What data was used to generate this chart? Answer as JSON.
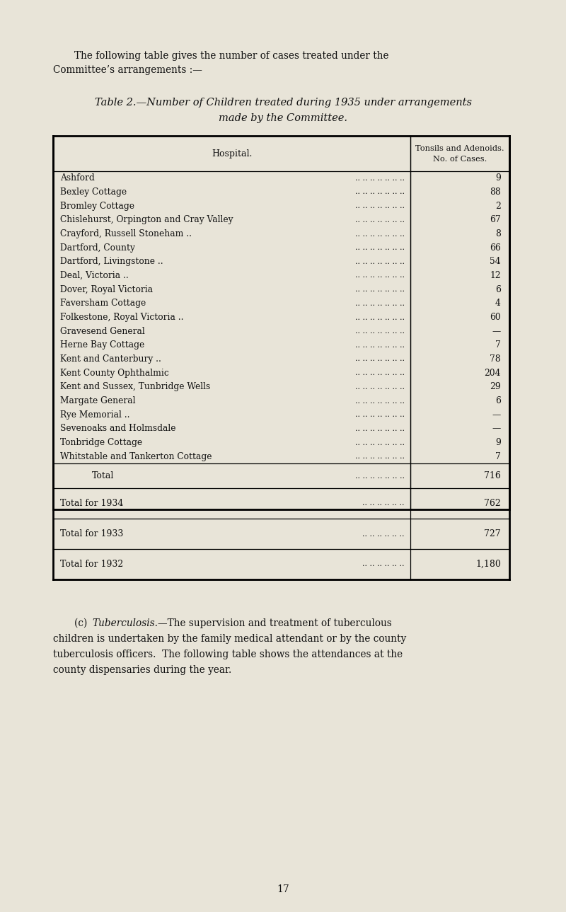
{
  "bg_color": "#e8e4d8",
  "page_width": 8.0,
  "page_height": 12.89,
  "hospitals": [
    "Ashford",
    "Bexley Cottage",
    "Bromley Cottage",
    "Chislehurst, Orpington and Cray Valley",
    "Crayford, Russell Stoneham ..",
    "Dartford, County",
    "Dartford, Livingstone ..",
    "Deal, Victoria ..",
    "Dover, Royal Victoria",
    "Faversham Cottage",
    "Folkestone, Royal Victoria ..",
    "Gravesend General",
    "Herne Bay Cottage",
    "Kent and Canterbury ..",
    "Kent County Ophthalmic",
    "Kent and Sussex, Tunbridge Wells",
    "Margate General",
    "Rye Memorial ..",
    "Sevenoaks and Holmsdale",
    "Tonbridge Cottage",
    "Whitstable and Tankerton Cottage"
  ],
  "cases": [
    "9",
    "88",
    "2",
    "67",
    "8",
    "66",
    "54",
    "12",
    "6",
    "4",
    "60",
    "—",
    "7",
    "78",
    "204",
    "29",
    "6",
    "—",
    "—",
    "9",
    "7"
  ],
  "total_value": "716",
  "year_totals": [
    {
      "label": "Total for 1934",
      "value": "762"
    },
    {
      "label": "Total for 1933",
      "value": "727"
    },
    {
      "label": "Total for 1932",
      "value": "1,180"
    }
  ],
  "page_number": "17"
}
